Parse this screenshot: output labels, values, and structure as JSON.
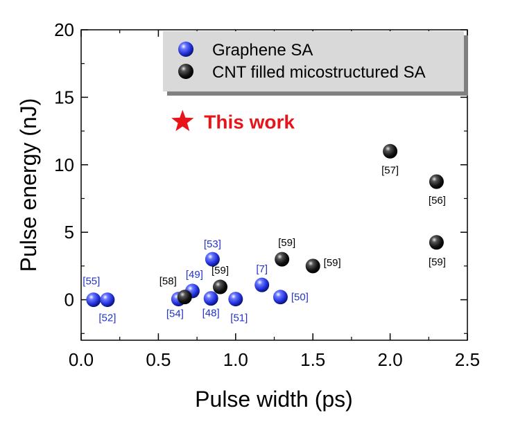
{
  "chart_data": {
    "type": "scatter",
    "xlabel": "Pulse width (ps)",
    "ylabel": "Pulse energy (nJ)",
    "xlim": [
      0.0,
      2.5
    ],
    "ylim": [
      -3,
      20
    ],
    "xticks": [
      "0.0",
      "0.5",
      "1.0",
      "1.5",
      "2.0",
      "2.5"
    ],
    "yticks": [
      "0",
      "5",
      "10",
      "15",
      "20"
    ],
    "grid": false,
    "legend_placement": "top-center",
    "colors": {
      "graphene": "#1f2fd6",
      "cnt": "#111111",
      "this_work": "#e8141a",
      "label_blue": "#2233c8",
      "label_black": "#000000"
    },
    "series": [
      {
        "name": "Graphene SA",
        "marker": "blue-sphere",
        "points": [
          {
            "x": 0.08,
            "y": 0.0,
            "label": "[55]"
          },
          {
            "x": 0.17,
            "y": 0.0,
            "label": "[52]"
          },
          {
            "x": 0.63,
            "y": 0.05,
            "label": "[54]"
          },
          {
            "x": 0.72,
            "y": 0.65,
            "label": "[49]"
          },
          {
            "x": 0.84,
            "y": 0.1,
            "label": "[48]"
          },
          {
            "x": 0.85,
            "y": 3.0,
            "label": "[53]"
          },
          {
            "x": 1.0,
            "y": 0.05,
            "label": "[51]"
          },
          {
            "x": 1.17,
            "y": 1.1,
            "label": "[7]"
          },
          {
            "x": 1.29,
            "y": 0.2,
            "label": "[50]"
          }
        ]
      },
      {
        "name": "CNT filled micostructured SA",
        "marker": "black-sphere",
        "points": [
          {
            "x": 0.67,
            "y": 0.2,
            "label": "[58]"
          },
          {
            "x": 0.9,
            "y": 0.95,
            "label": "[59]"
          },
          {
            "x": 1.3,
            "y": 3.0,
            "label": "[59]"
          },
          {
            "x": 1.5,
            "y": 2.5,
            "label": "[59]"
          },
          {
            "x": 2.0,
            "y": 11.0,
            "label": "[57]"
          },
          {
            "x": 2.3,
            "y": 8.75,
            "label": "[56]"
          },
          {
            "x": 2.3,
            "y": 4.25,
            "label": "[59]"
          }
        ]
      }
    ],
    "annotations": [
      {
        "text": "This work",
        "marker": "red-star",
        "x": 0.67,
        "y": 13.2
      }
    ]
  }
}
